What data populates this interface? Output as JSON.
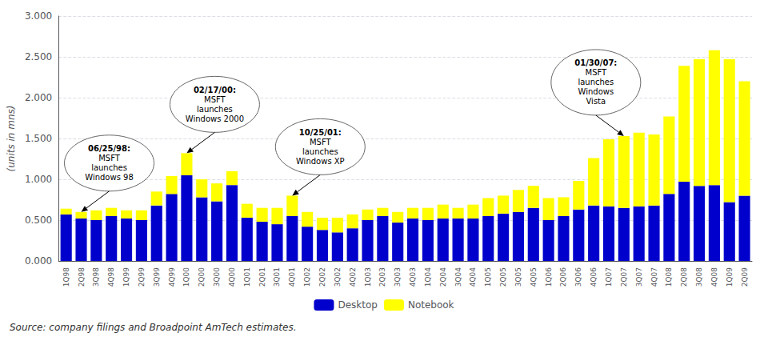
{
  "chart_data": {
    "type": "bar",
    "stacked": true,
    "categories": [
      "1Q98",
      "2Q98",
      "3Q98",
      "4Q98",
      "1Q99",
      "2Q99",
      "3Q99",
      "4Q99",
      "1Q00",
      "2Q00",
      "3Q00",
      "4Q00",
      "1Q01",
      "2Q01",
      "3Q01",
      "4Q01",
      "1Q02",
      "2Q02",
      "3Q02",
      "4Q02",
      "1Q03",
      "2Q03",
      "3Q03",
      "4Q03",
      "1Q04",
      "2Q04",
      "3Q04",
      "4Q04",
      "1Q05",
      "2Q05",
      "3Q05",
      "4Q05",
      "1Q06",
      "2Q06",
      "3Q06",
      "4Q06",
      "1Q07",
      "2Q07",
      "3Q07",
      "4Q07",
      "1Q08",
      "2Q08",
      "3Q08",
      "4Q08",
      "1Q09",
      "2Q09"
    ],
    "series": [
      {
        "name": "Desktop",
        "color": "#0000cc",
        "values": [
          0.57,
          0.52,
          0.5,
          0.55,
          0.52,
          0.5,
          0.68,
          0.82,
          1.05,
          0.78,
          0.73,
          0.93,
          0.53,
          0.48,
          0.45,
          0.55,
          0.42,
          0.38,
          0.35,
          0.4,
          0.5,
          0.55,
          0.47,
          0.52,
          0.5,
          0.52,
          0.52,
          0.52,
          0.55,
          0.58,
          0.6,
          0.65,
          0.5,
          0.55,
          0.63,
          0.68,
          0.67,
          0.65,
          0.67,
          0.68,
          0.82,
          0.97,
          0.92,
          0.93,
          0.72,
          0.8
        ]
      },
      {
        "name": "Notebook",
        "color": "#ffff00",
        "values": [
          0.07,
          0.08,
          0.12,
          0.1,
          0.1,
          0.12,
          0.17,
          0.22,
          0.27,
          0.22,
          0.22,
          0.17,
          0.17,
          0.17,
          0.2,
          0.25,
          0.18,
          0.15,
          0.18,
          0.17,
          0.13,
          0.1,
          0.13,
          0.13,
          0.15,
          0.17,
          0.13,
          0.17,
          0.22,
          0.22,
          0.27,
          0.27,
          0.27,
          0.23,
          0.35,
          0.58,
          0.82,
          0.88,
          0.9,
          0.87,
          0.95,
          1.42,
          1.55,
          1.65,
          1.75,
          1.4
        ]
      }
    ],
    "ylabel": "(units in mns)",
    "ylim": [
      0.0,
      3.0
    ],
    "yticks": [
      {
        "value": 0.0,
        "label": "0.000"
      },
      {
        "value": 0.5,
        "label": "0.500"
      },
      {
        "value": 1.0,
        "label": "1.000"
      },
      {
        "value": 1.5,
        "label": "1.500"
      },
      {
        "value": 2.0,
        "label": "2.000"
      },
      {
        "value": 2.5,
        "label": "2.500"
      },
      {
        "value": 3.0,
        "label": "3.000"
      }
    ],
    "grid": true,
    "legend": "bottom",
    "source": "Source: company filings and Broadpoint AmTech estimates.",
    "annotations": [
      {
        "text": [
          "06/25/98:",
          "MSFT",
          "launches",
          "Windows 98"
        ],
        "category": "2Q98"
      },
      {
        "text": [
          "02/17/00:",
          "MSFT",
          "launches",
          "Windows 2000"
        ],
        "category": "1Q00"
      },
      {
        "text": [
          "10/25/01:",
          "MSFT",
          "launches",
          "Windows XP"
        ],
        "category": "4Q01"
      },
      {
        "text": [
          "01/30/07:",
          "MSFT",
          "launches",
          "Windows",
          "Vista"
        ],
        "category": "2Q07"
      }
    ]
  }
}
